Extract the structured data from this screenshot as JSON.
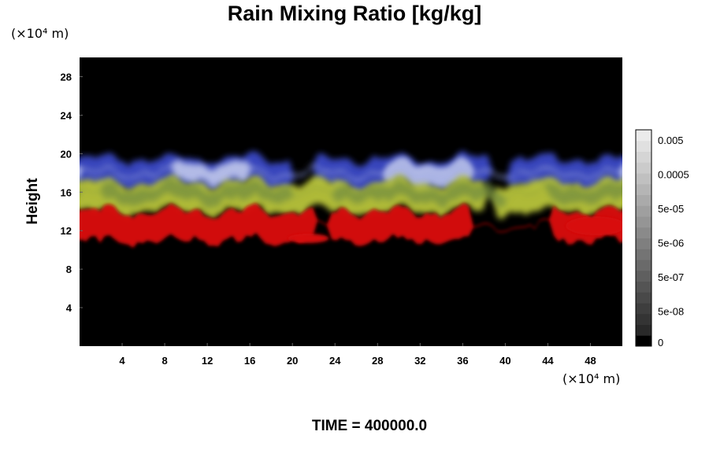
{
  "figure": {
    "title": "Rain Mixing Ratio [kg/kg]",
    "footer": "TIME = 400000.0"
  },
  "chart_data": {
    "type": "heatmap",
    "title": "Rain Mixing Ratio [kg/kg]",
    "ylabel": "Height",
    "xlabel": "",
    "x_unit": "(×10⁴ m)",
    "y_unit": "(×10⁴ m)",
    "x_ticks": [
      "4",
      "8",
      "12",
      "16",
      "20",
      "24",
      "28",
      "32",
      "36",
      "40",
      "44",
      "48"
    ],
    "y_ticks": [
      "4",
      "8",
      "12",
      "16",
      "20",
      "24",
      "28"
    ],
    "xlim": [
      0,
      51
    ],
    "ylim": [
      0,
      30
    ],
    "colorbar": {
      "labels": [
        "0",
        "5e-08",
        "5e-07",
        "5e-06",
        "5e-05",
        "0.0005",
        "0.005"
      ],
      "levels": 20
    },
    "bands": [
      {
        "name": "blue",
        "color": "#3a49c6",
        "y_range": [
          16.5,
          19.5
        ]
      },
      {
        "name": "yellow",
        "color": "#b9c53a",
        "y_range": [
          14,
          17
        ]
      },
      {
        "name": "red",
        "color": "#d81010",
        "y_range": [
          11,
          14
        ]
      }
    ],
    "footer": "TIME = 400000.0"
  }
}
